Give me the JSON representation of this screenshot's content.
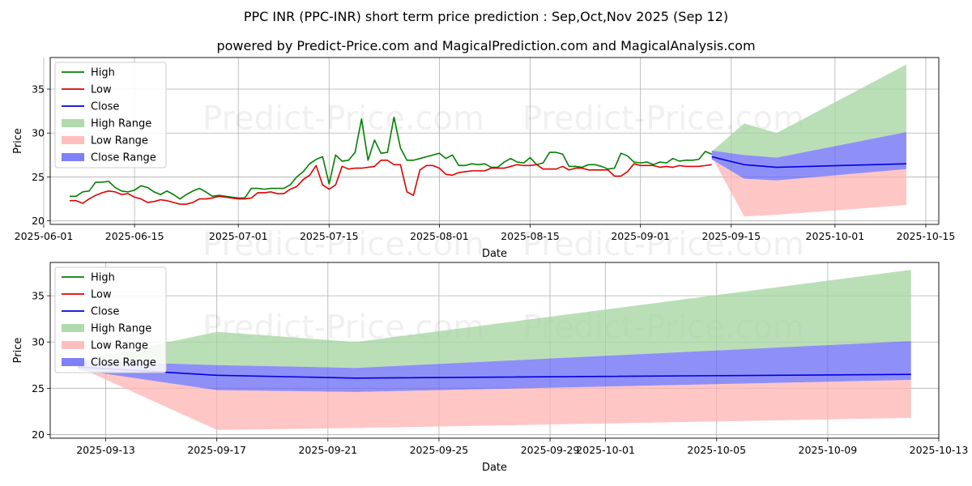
{
  "title": "PPC INR (PPC-INR) short term price prediction : Sep,Oct,Nov 2025 (Sep 12)",
  "subtitle": "powered by Predict-Price.com and MagicalPrediction.com and MagicalAnalysis.com",
  "watermark": "Predict-Price.com",
  "colors": {
    "high": "#008000",
    "low": "#e00000",
    "close": "#0000dd",
    "high_range": "#a3d49f",
    "low_range": "#ffb3b3",
    "close_range": "#6a6af5"
  },
  "chart_data": [
    {
      "type": "line",
      "xlabel": "Date",
      "ylabel": "Price",
      "xlim": [
        "2025-06-02",
        "2025-10-17"
      ],
      "ylim": [
        19.6,
        38.6
      ],
      "x_ticks": [
        "2025-06-01",
        "2025-06-15",
        "2025-07-01",
        "2025-07-15",
        "2025-08-01",
        "2025-08-15",
        "2025-09-01",
        "2025-09-15",
        "2025-10-01",
        "2025-10-15"
      ],
      "y_ticks": [
        20,
        25,
        30,
        35
      ],
      "grid": true,
      "legend": "top-left",
      "legend_entries": [
        "High",
        "Low",
        "Close",
        "High Range",
        "Low Range",
        "Close Range"
      ],
      "history": {
        "dates": [
          "2025-06-05",
          "2025-06-06",
          "2025-06-07",
          "2025-06-08",
          "2025-06-09",
          "2025-06-10",
          "2025-06-11",
          "2025-06-12",
          "2025-06-13",
          "2025-06-14",
          "2025-06-15",
          "2025-06-16",
          "2025-06-17",
          "2025-06-18",
          "2025-06-19",
          "2025-06-20",
          "2025-06-21",
          "2025-06-22",
          "2025-06-23",
          "2025-06-24",
          "2025-06-25",
          "2025-06-26",
          "2025-06-27",
          "2025-06-28",
          "2025-06-29",
          "2025-06-30",
          "2025-07-01",
          "2025-07-02",
          "2025-07-03",
          "2025-07-04",
          "2025-07-05",
          "2025-07-06",
          "2025-07-07",
          "2025-07-08",
          "2025-07-09",
          "2025-07-10",
          "2025-07-11",
          "2025-07-12",
          "2025-07-13",
          "2025-07-14",
          "2025-07-15",
          "2025-07-16",
          "2025-07-17",
          "2025-07-18",
          "2025-07-19",
          "2025-07-20",
          "2025-07-21",
          "2025-07-22",
          "2025-07-23",
          "2025-07-24",
          "2025-07-25",
          "2025-07-26",
          "2025-07-27",
          "2025-07-28",
          "2025-07-29",
          "2025-07-30",
          "2025-07-31",
          "2025-08-01",
          "2025-08-02",
          "2025-08-03",
          "2025-08-04",
          "2025-08-05",
          "2025-08-06",
          "2025-08-07",
          "2025-08-08",
          "2025-08-09",
          "2025-08-10",
          "2025-08-11",
          "2025-08-12",
          "2025-08-13",
          "2025-08-14",
          "2025-08-15",
          "2025-08-16",
          "2025-08-17",
          "2025-08-18",
          "2025-08-19",
          "2025-08-20",
          "2025-08-21",
          "2025-08-22",
          "2025-08-23",
          "2025-08-24",
          "2025-08-25",
          "2025-08-26",
          "2025-08-27",
          "2025-08-28",
          "2025-08-29",
          "2025-08-30",
          "2025-08-31",
          "2025-09-01",
          "2025-09-02",
          "2025-09-03",
          "2025-09-04",
          "2025-09-05",
          "2025-09-06",
          "2025-09-07",
          "2025-09-08",
          "2025-09-09",
          "2025-09-10",
          "2025-09-11",
          "2025-09-12"
        ],
        "high": [
          22.8,
          22.8,
          23.3,
          23.4,
          24.4,
          24.4,
          24.5,
          23.8,
          23.4,
          23.3,
          23.5,
          24.0,
          23.8,
          23.3,
          23.0,
          23.4,
          23.0,
          22.5,
          23.0,
          23.4,
          23.7,
          23.3,
          22.8,
          22.9,
          22.8,
          22.7,
          22.6,
          22.6,
          23.7,
          23.7,
          23.6,
          23.7,
          23.7,
          23.7,
          24.1,
          25.0,
          25.6,
          26.5,
          27.0,
          27.3,
          24.2,
          27.5,
          26.8,
          26.9,
          27.8,
          31.6,
          26.9,
          29.2,
          27.7,
          27.8,
          31.8,
          28.3,
          26.9,
          26.9,
          27.1,
          27.3,
          27.5,
          27.7,
          27.1,
          27.5,
          26.3,
          26.3,
          26.5,
          26.4,
          26.5,
          26.1,
          26.1,
          26.7,
          27.1,
          26.7,
          26.6,
          27.2,
          26.4,
          26.6,
          27.8,
          27.8,
          27.6,
          26.2,
          26.2,
          26.1,
          26.4,
          26.4,
          26.2,
          25.9,
          26.0,
          27.7,
          27.4,
          26.7,
          26.6,
          26.7,
          26.4,
          26.7,
          26.6,
          27.1,
          26.8,
          26.9,
          26.9,
          27.0,
          27.9,
          27.6
        ],
        "low": [
          22.3,
          22.3,
          22.0,
          22.5,
          22.9,
          23.2,
          23.4,
          23.3,
          23.0,
          23.1,
          22.7,
          22.5,
          22.1,
          22.2,
          22.4,
          22.3,
          22.1,
          21.9,
          21.9,
          22.1,
          22.5,
          22.5,
          22.6,
          22.8,
          22.7,
          22.6,
          22.5,
          22.5,
          22.6,
          23.2,
          23.2,
          23.3,
          23.1,
          23.1,
          23.6,
          23.9,
          24.7,
          25.2,
          26.3,
          24.1,
          23.6,
          24.1,
          26.2,
          25.9,
          26.0,
          26.0,
          26.1,
          26.2,
          26.9,
          26.9,
          26.4,
          26.4,
          23.3,
          22.9,
          25.8,
          26.3,
          26.3,
          26.0,
          25.3,
          25.2,
          25.5,
          25.6,
          25.7,
          25.7,
          25.7,
          26.0,
          26.0,
          26.0,
          26.2,
          26.4,
          26.3,
          26.3,
          26.4,
          25.9,
          25.9,
          25.9,
          26.2,
          25.8,
          26.0,
          26.0,
          25.8,
          25.8,
          25.8,
          25.8,
          25.1,
          25.1,
          25.6,
          26.5,
          26.3,
          26.3,
          26.3,
          26.1,
          26.2,
          26.1,
          26.3,
          26.2,
          26.2,
          26.2,
          26.3,
          26.4
        ],
        "close": [
          22.6,
          22.6,
          22.7,
          23.0,
          23.7,
          23.8,
          24.0,
          23.6,
          23.2,
          23.2,
          23.1,
          23.3,
          23.0,
          22.8,
          22.7,
          22.8,
          22.6,
          22.2,
          22.5,
          22.8,
          23.1,
          22.9,
          22.7,
          22.8,
          22.7,
          22.6,
          22.6,
          22.6,
          23.2,
          23.5,
          23.4,
          23.5,
          23.4,
          23.4,
          23.9,
          24.5,
          25.2,
          25.9,
          26.7,
          25.7,
          23.9,
          25.8,
          26.5,
          26.4,
          26.9,
          28.8,
          26.5,
          27.7,
          27.3,
          27.4,
          29.1,
          27.4,
          25.1,
          24.9,
          26.5,
          26.8,
          26.9,
          26.9,
          26.2,
          26.4,
          25.9,
          26.0,
          26.1,
          26.1,
          26.1,
          26.1,
          26.1,
          26.4,
          26.7,
          26.6,
          26.5,
          26.8,
          26.4,
          26.3,
          26.9,
          26.9,
          26.9,
          26.0,
          26.1,
          26.1,
          26.1,
          26.1,
          26.0,
          25.9,
          25.6,
          26.4,
          26.5,
          26.6,
          26.5,
          26.5,
          26.4,
          26.4,
          26.4,
          26.6,
          26.6,
          26.6,
          26.6,
          26.6,
          27.0,
          27.1
        ]
      },
      "forecast": {
        "dates": [
          "2025-09-12",
          "2025-09-17",
          "2025-09-22",
          "2025-10-12"
        ],
        "close": [
          27.3,
          26.4,
          26.1,
          26.5
        ],
        "close_range_upper": [
          28.0,
          27.5,
          27.2,
          30.1
        ],
        "close_range_lower": [
          27.0,
          24.8,
          24.6,
          25.9
        ],
        "high_range_upper": [
          27.9,
          31.1,
          30.0,
          37.8
        ],
        "low_range_lower": [
          27.3,
          20.5,
          20.7,
          21.8
        ]
      }
    },
    {
      "type": "line",
      "xlabel": "Date",
      "ylabel": "Price",
      "xlim": [
        "2025-09-11",
        "2025-10-13"
      ],
      "ylim": [
        19.6,
        38.6
      ],
      "x_ticks": [
        "2025-09-13",
        "2025-09-17",
        "2025-09-21",
        "2025-09-25",
        "2025-09-29",
        "2025-10-01",
        "2025-10-05",
        "2025-10-09",
        "2025-10-13"
      ],
      "y_ticks": [
        20,
        25,
        30,
        35
      ],
      "grid": true,
      "legend": "top-left",
      "legend_entries": [
        "High",
        "Low",
        "Close",
        "High Range",
        "Low Range",
        "Close Range"
      ]
    }
  ]
}
